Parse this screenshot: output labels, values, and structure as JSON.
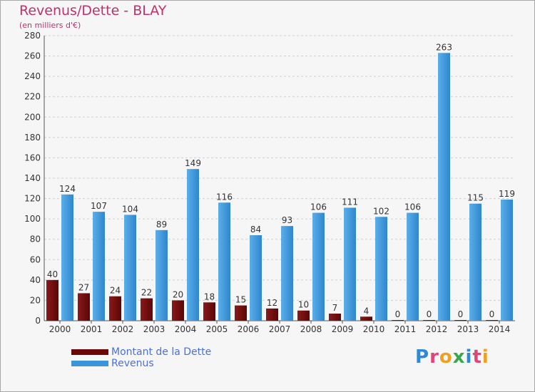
{
  "title": "Revenus/Dette - BLAY",
  "subtitle": "(en milliers d'€)",
  "logo": "Proxiti",
  "colors": {
    "dette": "#7a0c0c",
    "revenus": "#3a95da",
    "title": "#c0306a",
    "legend_text": "#4a6fe0"
  },
  "chart_data": {
    "type": "bar",
    "title": "Revenus/Dette - BLAY",
    "ylabel": "(en milliers d'€)",
    "ylim": [
      0,
      280
    ],
    "yticks": [
      0,
      20,
      40,
      60,
      80,
      100,
      120,
      140,
      160,
      180,
      200,
      220,
      240,
      260,
      280
    ],
    "grid": true,
    "legend": "bottom-left",
    "categories": [
      "2000",
      "2001",
      "2002",
      "2003",
      "2004",
      "2005",
      "2006",
      "2007",
      "2008",
      "2009",
      "2010",
      "2011",
      "2012",
      "2013",
      "2014"
    ],
    "series": [
      {
        "name": "Montant de la Dette",
        "color": "#7a0c0c",
        "values": [
          40,
          27,
          24,
          22,
          20,
          18,
          15,
          12,
          10,
          7,
          4,
          0,
          0,
          0,
          0
        ]
      },
      {
        "name": "Revenus",
        "color": "#3a95da",
        "values": [
          124,
          107,
          104,
          89,
          149,
          116,
          84,
          93,
          106,
          111,
          102,
          106,
          263,
          115,
          119
        ]
      }
    ]
  }
}
